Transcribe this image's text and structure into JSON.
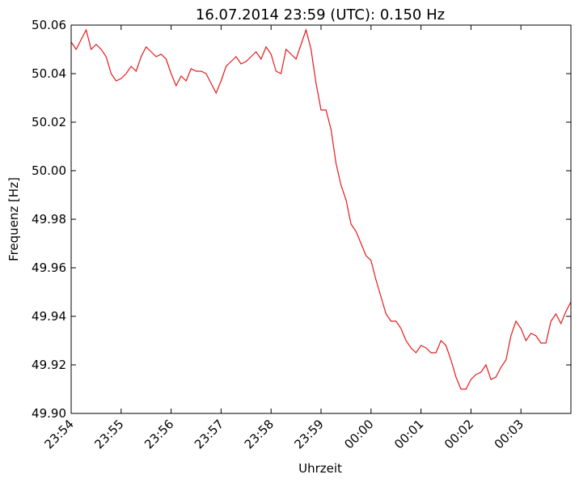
{
  "chart_data": {
    "type": "line",
    "title": "16.07.2014 23:59 (UTC): 0.150 Hz",
    "xlabel": "Uhrzeit",
    "ylabel": "Frequenz [Hz]",
    "x": [
      0,
      0.1,
      0.2,
      0.3,
      0.4,
      0.5,
      0.6,
      0.7,
      0.8,
      0.9,
      1,
      1.1,
      1.2,
      1.3,
      1.4,
      1.5,
      1.6,
      1.7,
      1.8,
      1.9,
      2,
      2.1,
      2.2,
      2.3,
      2.4,
      2.5,
      2.6,
      2.7,
      2.8,
      2.9,
      3,
      3.1,
      3.2,
      3.3,
      3.4,
      3.5,
      3.6,
      3.7,
      3.8,
      3.9,
      4,
      4.1,
      4.2,
      4.3,
      4.4,
      4.5,
      4.6,
      4.7,
      4.8,
      4.9,
      5,
      5.1,
      5.2,
      5.3,
      5.4,
      5.5,
      5.6,
      5.7,
      5.8,
      5.9,
      6,
      6.1,
      6.2,
      6.3,
      6.4,
      6.5,
      6.6,
      6.7,
      6.8,
      6.9,
      7,
      7.1,
      7.2,
      7.3,
      7.4,
      7.5,
      7.6,
      7.7,
      7.8,
      7.9,
      8,
      8.1,
      8.2,
      8.3,
      8.4,
      8.5,
      8.6,
      8.7,
      8.8,
      8.9,
      9,
      9.1,
      9.2,
      9.3,
      9.4,
      9.5,
      9.6,
      9.7,
      9.8,
      9.9,
      10
    ],
    "series": [
      {
        "name": "Frequenz",
        "color": "#e41a1c",
        "values": [
          50.053,
          50.05,
          50.054,
          50.058,
          50.05,
          50.052,
          50.05,
          50.047,
          50.04,
          50.037,
          50.038,
          50.04,
          50.043,
          50.041,
          50.047,
          50.051,
          50.049,
          50.047,
          50.048,
          50.046,
          50.04,
          50.035,
          50.039,
          50.037,
          50.042,
          50.041,
          50.041,
          50.04,
          50.036,
          50.032,
          50.037,
          50.043,
          50.045,
          50.047,
          50.044,
          50.045,
          50.047,
          50.049,
          50.046,
          50.051,
          50.048,
          50.041,
          50.04,
          50.05,
          50.048,
          50.046,
          50.052,
          50.058,
          50.05,
          50.036,
          50.025,
          50.025,
          50.017,
          50.003,
          49.994,
          49.988,
          49.978,
          49.975,
          49.97,
          49.965,
          49.963,
          49.955,
          49.948,
          49.941,
          49.938,
          49.938,
          49.935,
          49.93,
          49.927,
          49.925,
          49.928,
          49.927,
          49.925,
          49.925,
          49.93,
          49.928,
          49.922,
          49.915,
          49.91,
          49.91,
          49.914,
          49.916,
          49.917,
          49.92,
          49.914,
          49.915,
          49.919,
          49.922,
          49.932,
          49.938,
          49.935,
          49.93,
          49.933,
          49.932,
          49.929,
          49.929,
          49.938,
          49.941,
          49.937,
          49.942,
          49.946
        ]
      }
    ],
    "xlim": [
      0,
      10
    ],
    "xticks": [
      {
        "value": 0,
        "label": "23:54"
      },
      {
        "value": 1,
        "label": "23:55"
      },
      {
        "value": 2,
        "label": "23:56"
      },
      {
        "value": 3,
        "label": "23:57"
      },
      {
        "value": 4,
        "label": "23:58"
      },
      {
        "value": 5,
        "label": "23:59"
      },
      {
        "value": 6,
        "label": "00:00"
      },
      {
        "value": 7,
        "label": "00:01"
      },
      {
        "value": 8,
        "label": "00:02"
      },
      {
        "value": 9,
        "label": "00:03"
      }
    ],
    "ylim": [
      49.9,
      50.06
    ],
    "yticks": [
      {
        "value": 49.9,
        "label": "49.90"
      },
      49.92,
      49.94,
      49.96,
      49.98,
      {
        "value": 50,
        "label": "50.00"
      },
      50.02,
      50.04,
      50.06
    ]
  }
}
